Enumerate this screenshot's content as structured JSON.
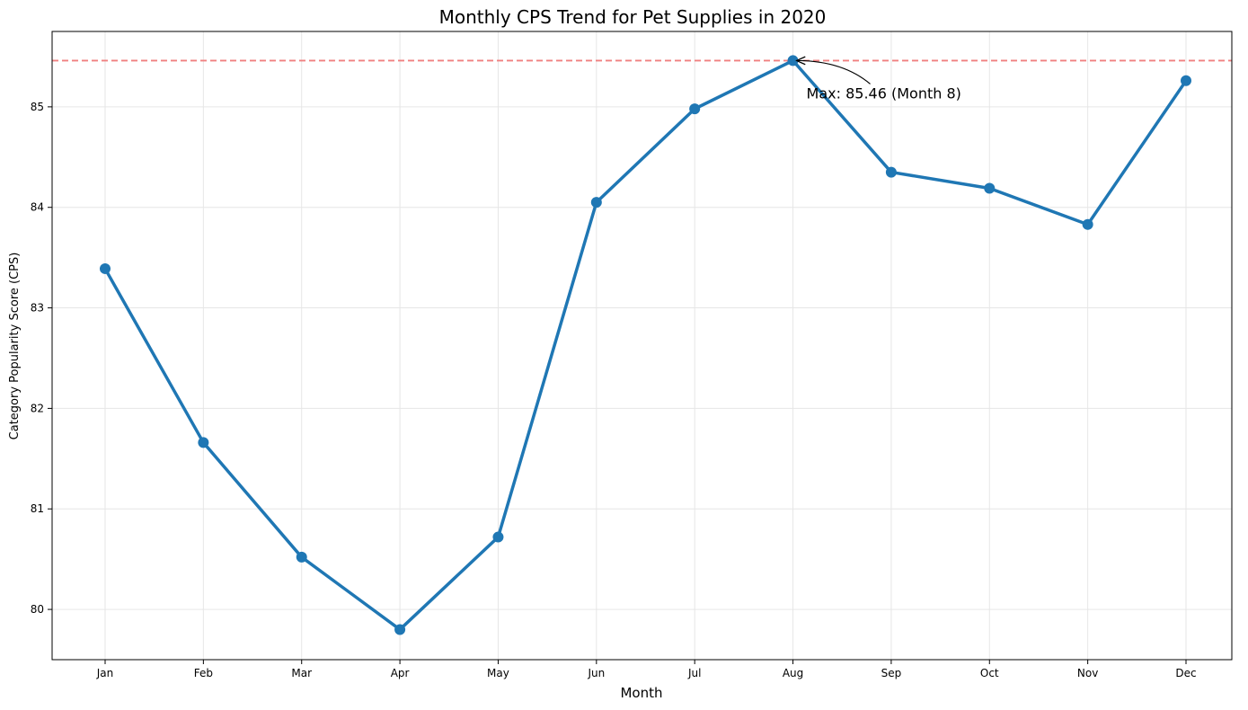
{
  "chart_data": {
    "type": "line",
    "title": "Monthly CPS Trend for Pet Supplies in 2020",
    "xlabel": "Month",
    "ylabel": "Category Popularity Score (CPS)",
    "categories": [
      "Jan",
      "Feb",
      "Mar",
      "Apr",
      "May",
      "Jun",
      "Jul",
      "Aug",
      "Sep",
      "Oct",
      "Nov",
      "Dec"
    ],
    "values": [
      83.39,
      81.66,
      80.52,
      79.8,
      80.72,
      84.05,
      84.98,
      85.46,
      84.35,
      84.19,
      83.83,
      85.26
    ],
    "ylim": [
      79.5,
      85.75
    ],
    "yticks": [
      "80",
      "81",
      "82",
      "83",
      "84",
      "85"
    ],
    "grid": true,
    "line_color": "#1f77b4",
    "reference_line": {
      "value": 85.46,
      "color": "#f08080",
      "style": "dashed"
    },
    "annotation": {
      "text": "Max: 85.46 (Month 8)",
      "category": "Aug",
      "value": 85.46
    }
  }
}
